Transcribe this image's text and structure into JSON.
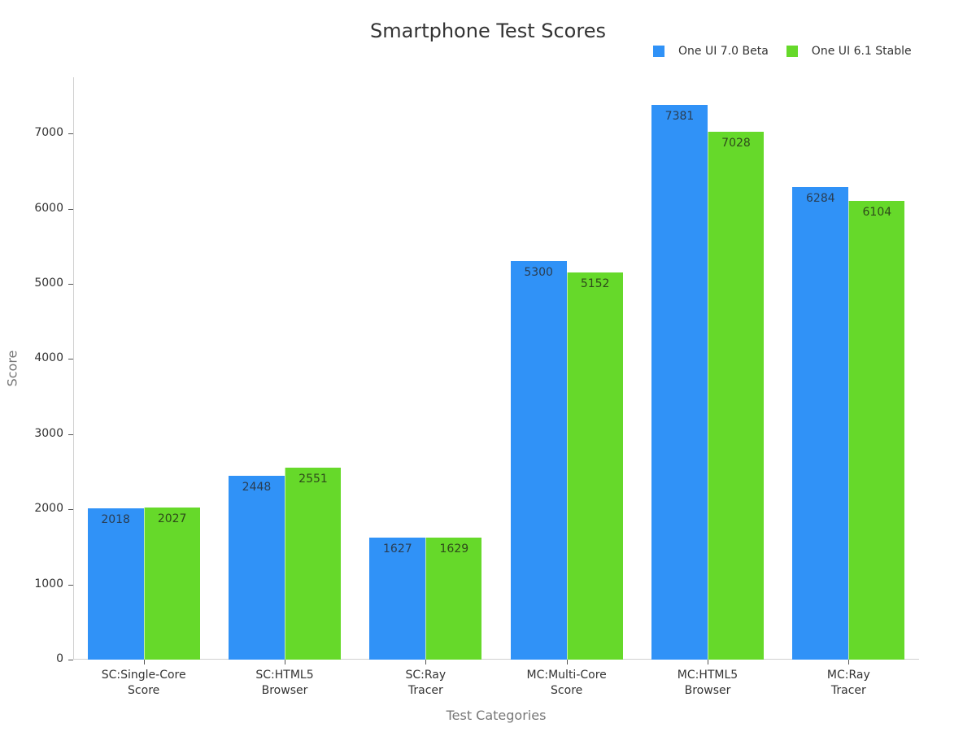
{
  "chart_data": {
    "type": "bar",
    "title": "Smartphone Test Scores",
    "xlabel": "Test Categories",
    "ylabel": "Score",
    "ylim": [
      0,
      7750
    ],
    "yticks": [
      0,
      1000,
      2000,
      3000,
      4000,
      5000,
      6000,
      7000
    ],
    "grid": false,
    "legend_position": "top-right",
    "categories": [
      "SC:Single-Core Score",
      "SC:HTML5 Browser",
      "SC:Ray Tracer",
      "MC:Multi-Core Score",
      "MC:HTML5 Browser",
      "MC:Ray Tracer"
    ],
    "category_lines": [
      [
        "SC:Single-Core",
        "Score"
      ],
      [
        "SC:HTML5",
        "Browser"
      ],
      [
        "SC:Ray",
        "Tracer"
      ],
      [
        "MC:Multi-Core",
        "Score"
      ],
      [
        "MC:HTML5",
        "Browser"
      ],
      [
        "MC:Ray",
        "Tracer"
      ]
    ],
    "series": [
      {
        "name": "One UI 7.0 Beta",
        "color": "#3092f7",
        "values": [
          2018,
          2448,
          1627,
          5300,
          7381,
          6284
        ]
      },
      {
        "name": "One UI 6.1 Stable",
        "color": "#66d92a",
        "values": [
          2027,
          2551,
          1629,
          5152,
          7028,
          6104
        ]
      }
    ]
  }
}
